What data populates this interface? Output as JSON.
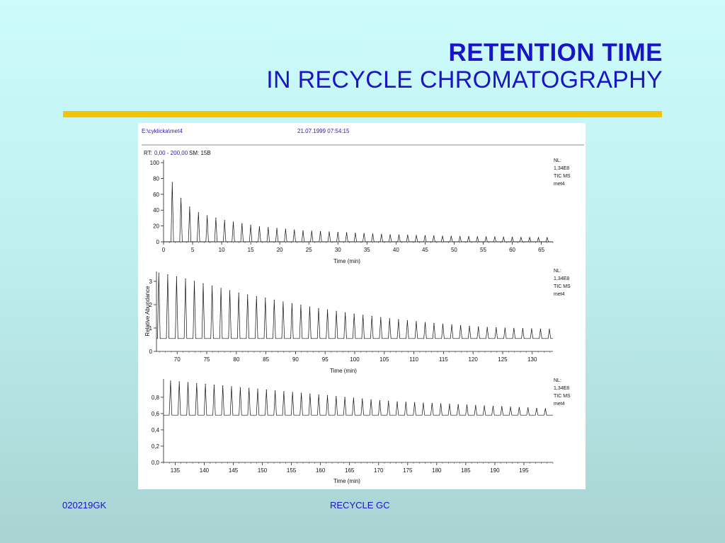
{
  "slide": {
    "title_line1": "RETENTION TIME",
    "title_line2": "IN RECYCLE CHROMATOGRAPHY",
    "footer_left": "020219GK",
    "footer_center": "RECYCLE GC",
    "accent_color": "#f5c400",
    "title_color": "#1a14c8"
  },
  "chart_header": {
    "file": "E:\\cyklicka\\met4",
    "datetime": "21.07.1999 07:54:15",
    "rt_label": "RT:",
    "rt_range": "0,00 - 200,00",
    "sm_label": "SM: 15B"
  },
  "chart_data": [
    {
      "type": "line",
      "xlabel": "Time (min)",
      "ylabel": "",
      "xlim": [
        0,
        67
      ],
      "ylim": [
        0,
        100
      ],
      "xticks": [
        "0",
        "5",
        "10",
        "15",
        "20",
        "25",
        "30",
        "35",
        "40",
        "45",
        "50",
        "55",
        "60",
        "65"
      ],
      "yticks": [
        "0",
        "20",
        "40",
        "60",
        "80",
        "100"
      ],
      "annotation": [
        "NL:",
        "1,34E8",
        "TIC  MS",
        "met4"
      ],
      "peak_start": 1.5,
      "peak_spacing": 1.5,
      "peak_heights": [
        75,
        55,
        44,
        37,
        33,
        30,
        27,
        25,
        23,
        21,
        19,
        18,
        17,
        16,
        15,
        14,
        13.5,
        13,
        12.5,
        12,
        11.5,
        11,
        10.5,
        10,
        9.5,
        9,
        8.7,
        8.4,
        8.1,
        7.8,
        7.5,
        7.2,
        7,
        6.8,
        6.6,
        6.4,
        6.2,
        6,
        5.8,
        5.6,
        5.5,
        5.4,
        5.3,
        5.2
      ],
      "baseline": 0
    },
    {
      "type": "line",
      "xlabel": "Time (min)",
      "ylabel": "Relative Abundance",
      "xlim": [
        66.5,
        133.5
      ],
      "ylim": [
        0,
        3.3
      ],
      "xticks": [
        "70",
        "75",
        "80",
        "85",
        "90",
        "95",
        "100",
        "105",
        "110",
        "115",
        "120",
        "125",
        "130"
      ],
      "yticks": [
        "0",
        "1",
        "2",
        "3"
      ],
      "annotation": [
        "NL:",
        "1,34E8",
        "TIC  MS",
        "met4"
      ],
      "peak_start": 66.9,
      "peak_spacing": 1.5,
      "peak_heights": [
        3.35,
        3.28,
        3.2,
        3.1,
        3.0,
        2.9,
        2.8,
        2.7,
        2.6,
        2.5,
        2.42,
        2.35,
        2.28,
        2.2,
        2.12,
        2.05,
        1.98,
        1.9,
        1.84,
        1.78,
        1.72,
        1.66,
        1.6,
        1.55,
        1.5,
        1.45,
        1.4,
        1.36,
        1.32,
        1.28,
        1.24,
        1.2,
        1.17,
        1.14,
        1.11,
        1.08,
        1.05,
        1.03,
        1.01,
        1.0,
        0.99,
        0.98,
        0.97,
        0.96,
        0.95
      ],
      "baseline": 0.55
    },
    {
      "type": "line",
      "xlabel": "Time (min)",
      "ylabel": "",
      "xlim": [
        133,
        200
      ],
      "ylim": [
        0,
        0.99
      ],
      "xticks": [
        "135",
        "140",
        "145",
        "150",
        "155",
        "160",
        "165",
        "170",
        "175",
        "180",
        "185",
        "190",
        "195"
      ],
      "yticks": [
        "0,0",
        "0,2",
        "0,4",
        "0,6",
        "0,8"
      ],
      "annotation": [
        "NL:",
        "1,34E8",
        "TIC  MS",
        "met4"
      ],
      "peak_start": 134.2,
      "peak_spacing": 1.5,
      "peak_heights": [
        1.0,
        0.99,
        0.98,
        0.97,
        0.96,
        0.95,
        0.94,
        0.93,
        0.92,
        0.91,
        0.9,
        0.89,
        0.88,
        0.87,
        0.86,
        0.85,
        0.84,
        0.83,
        0.82,
        0.81,
        0.8,
        0.79,
        0.78,
        0.77,
        0.76,
        0.75,
        0.745,
        0.74,
        0.735,
        0.73,
        0.725,
        0.72,
        0.715,
        0.71,
        0.705,
        0.7,
        0.695,
        0.69,
        0.685,
        0.68,
        0.675,
        0.67,
        0.665,
        0.66
      ],
      "baseline": 0.58
    }
  ]
}
